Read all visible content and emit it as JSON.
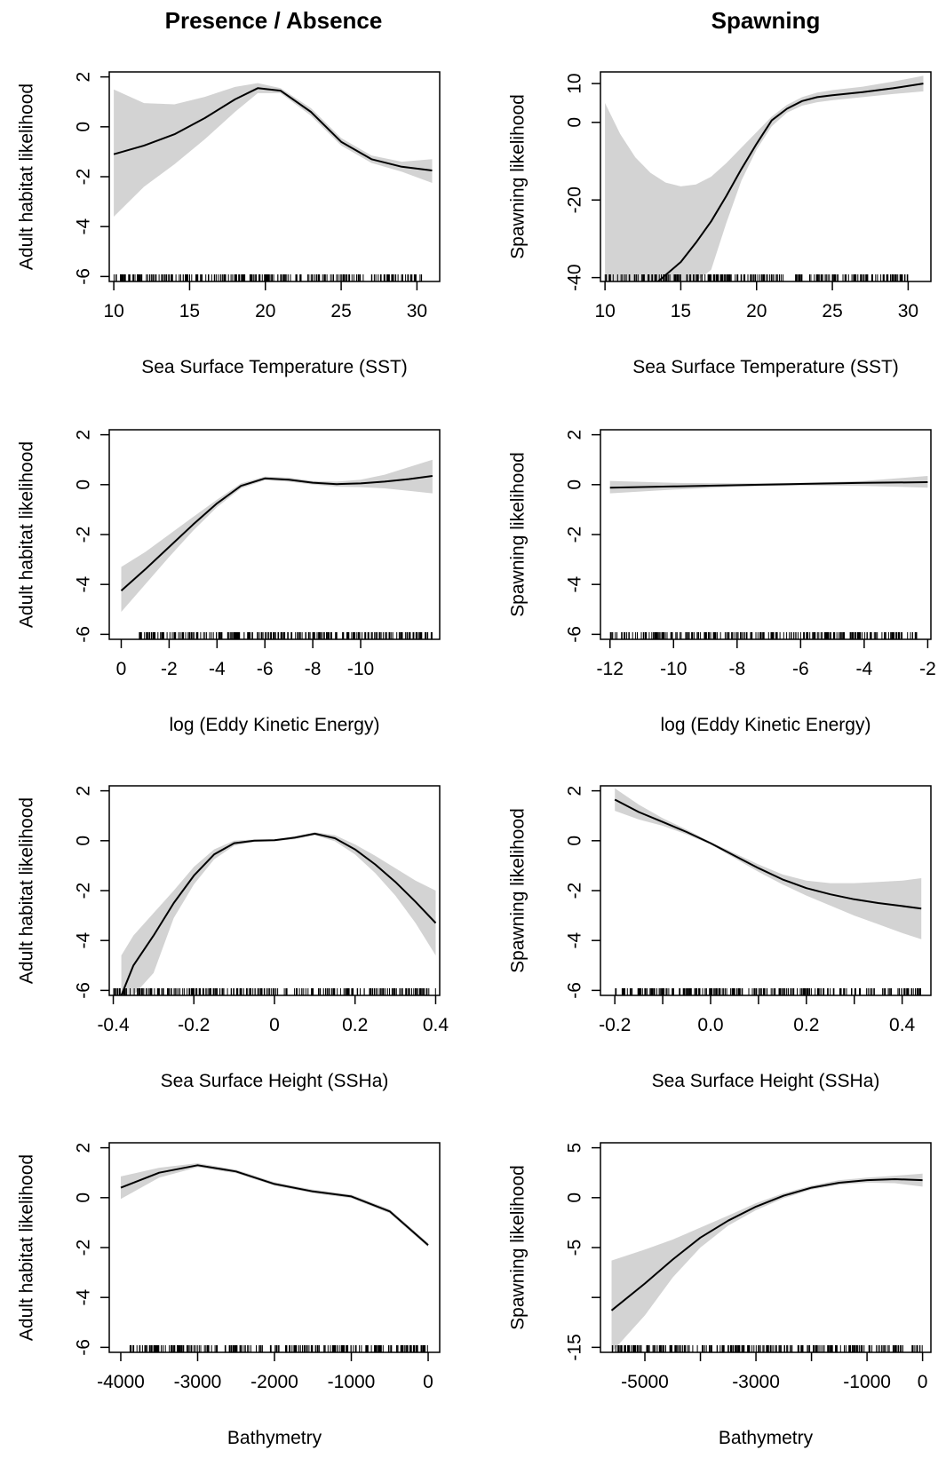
{
  "columns": [
    "Presence / Absence",
    "Spawning"
  ],
  "chart_data": [
    {
      "type": "line",
      "column": 0,
      "row": 0,
      "xlabel": "Sea Surface Temperature (SST)",
      "ylabel": "Adult habitat likelihood",
      "xlim": [
        9.7,
        31.5
      ],
      "ylim": [
        -6.2,
        2.2
      ],
      "xticks": [
        10,
        15,
        20,
        25,
        30
      ],
      "yticks": [
        -6,
        -4,
        -2,
        0,
        2
      ],
      "x": [
        10,
        12,
        14,
        16,
        18,
        19.5,
        21,
        23,
        25,
        27,
        29,
        31
      ],
      "y": [
        -1.1,
        -0.75,
        -0.3,
        0.35,
        1.1,
        1.55,
        1.45,
        0.6,
        -0.6,
        -1.3,
        -1.6,
        -1.75
      ],
      "upper": [
        1.5,
        0.95,
        0.9,
        1.2,
        1.6,
        1.75,
        1.55,
        0.75,
        -0.45,
        -1.15,
        -1.4,
        -1.3
      ],
      "lower": [
        -3.6,
        -2.4,
        -1.5,
        -0.5,
        0.6,
        1.35,
        1.35,
        0.45,
        -0.75,
        -1.45,
        -1.8,
        -2.25
      ],
      "rug_range": [
        10,
        30.5
      ]
    },
    {
      "type": "line",
      "column": 1,
      "row": 0,
      "xlabel": "Sea Surface Temperature (SST)",
      "ylabel": "Spawning likelihood",
      "xlim": [
        9.7,
        31.5
      ],
      "ylim": [
        -41,
        13
      ],
      "xticks": [
        10,
        15,
        20,
        25,
        30
      ],
      "yticks": [
        -40,
        -20,
        0,
        10
      ],
      "x": [
        13.5,
        15,
        16,
        17,
        18,
        19,
        20,
        21,
        22,
        23,
        24,
        25,
        27,
        29,
        31
      ],
      "y": [
        -41,
        -36,
        -31,
        -25.5,
        -19,
        -12,
        -5.5,
        0.5,
        3.5,
        5.5,
        6.5,
        7,
        7.8,
        8.8,
        10
      ],
      "upper": [
        null,
        null,
        null,
        null,
        null,
        null,
        null,
        null,
        null,
        null,
        null,
        null,
        null,
        null,
        null
      ],
      "band_x": [
        10,
        11,
        12,
        13,
        14,
        15,
        16,
        17,
        18,
        19,
        20,
        21,
        22,
        23,
        24,
        25,
        27,
        29,
        31
      ],
      "band_upper": [
        5,
        -3,
        -9,
        -13,
        -15.5,
        -16.5,
        -16,
        -14,
        -10.5,
        -6.5,
        -2.5,
        1.5,
        4.5,
        6.5,
        7.7,
        8.3,
        9.2,
        10.5,
        12
      ],
      "band_lower": [
        -41,
        -41,
        -41,
        -41,
        -41,
        -41,
        -41,
        -38,
        -26,
        -15,
        -7,
        -1,
        2.5,
        4.3,
        5.2,
        5.7,
        6.5,
        7.3,
        8
      ],
      "rug_range": [
        10,
        30
      ]
    },
    {
      "type": "line",
      "column": 0,
      "row": 1,
      "xlabel": "log (Eddy Kinetic Energy)",
      "ylabel": "Adult habitat likelihood",
      "xlim": [
        0.5,
        -13.3
      ],
      "ylim": [
        -6.2,
        2.2
      ],
      "xticks": [
        0,
        -2,
        -4,
        -6,
        -8,
        -10
      ],
      "yticks": [
        -6,
        -4,
        -2,
        0,
        2
      ],
      "x": [
        0,
        -1,
        -2,
        -3,
        -4,
        -5,
        -6,
        -7,
        -8,
        -9,
        -10,
        -11,
        -12,
        -13
      ],
      "y": [
        -4.25,
        -3.4,
        -2.5,
        -1.6,
        -0.75,
        -0.05,
        0.25,
        0.2,
        0.08,
        0.02,
        0.05,
        0.12,
        0.22,
        0.35
      ],
      "upper": [
        -3.3,
        -2.7,
        -2.0,
        -1.3,
        -0.6,
        0.05,
        0.32,
        0.28,
        0.15,
        0.12,
        0.2,
        0.4,
        0.7,
        1.0
      ],
      "lower": [
        -5.1,
        -4.0,
        -2.9,
        -1.85,
        -0.9,
        -0.15,
        0.18,
        0.12,
        0.0,
        -0.08,
        -0.1,
        -0.15,
        -0.25,
        -0.35
      ],
      "rug_range": [
        -0.7,
        -13
      ]
    },
    {
      "type": "line",
      "column": 1,
      "row": 1,
      "xlabel": "log (Eddy Kinetic Energy)",
      "ylabel": "Spawning likelihood",
      "xlim": [
        -12.3,
        -1.9
      ],
      "ylim": [
        -6.2,
        2.2
      ],
      "xticks": [
        -12,
        -10,
        -8,
        -6,
        -4,
        -2
      ],
      "yticks": [
        -6,
        -4,
        -2,
        0,
        2
      ],
      "x": [
        -12,
        -10,
        -8,
        -6,
        -4,
        -2
      ],
      "y": [
        -0.12,
        -0.07,
        -0.02,
        0.03,
        0.07,
        0.1
      ],
      "upper": [
        0.15,
        0.07,
        0.05,
        0.07,
        0.15,
        0.35
      ],
      "lower": [
        -0.35,
        -0.2,
        -0.08,
        -0.03,
        -0.05,
        -0.12
      ],
      "rug_range": [
        -12,
        -2.3
      ]
    },
    {
      "type": "line",
      "column": 0,
      "row": 2,
      "xlabel": "Sea Surface Height (SSHa)",
      "ylabel": "Adult habitat likelihood",
      "xlim": [
        -0.41,
        0.41
      ],
      "ylim": [
        -6.2,
        2.2
      ],
      "xticks": [
        -0.4,
        -0.2,
        0.0,
        0.2,
        0.4
      ],
      "yticks": [
        -6,
        -4,
        -2,
        0,
        2
      ],
      "x": [
        -0.38,
        -0.35,
        -0.3,
        -0.25,
        -0.2,
        -0.15,
        -0.1,
        -0.05,
        0.0,
        0.05,
        0.1,
        0.15,
        0.2,
        0.25,
        0.3,
        0.35,
        0.4
      ],
      "y": [
        -6.2,
        -5.0,
        -3.8,
        -2.5,
        -1.4,
        -0.55,
        -0.1,
        0.0,
        0.02,
        0.12,
        0.28,
        0.1,
        -0.35,
        -0.95,
        -1.65,
        -2.45,
        -3.3
      ],
      "upper": [
        -4.6,
        -3.8,
        -2.9,
        -2.0,
        -1.05,
        -0.35,
        0.0,
        0.05,
        0.05,
        0.18,
        0.34,
        0.22,
        -0.15,
        -0.6,
        -1.1,
        -1.6,
        -2.0
      ],
      "lower": [
        -6.2,
        -6.2,
        -5.3,
        -3.1,
        -1.75,
        -0.75,
        -0.2,
        -0.05,
        -0.02,
        0.06,
        0.22,
        -0.02,
        -0.55,
        -1.3,
        -2.2,
        -3.3,
        -4.6
      ],
      "rug_range": [
        -0.4,
        0.4
      ]
    },
    {
      "type": "line",
      "column": 1,
      "row": 2,
      "xlabel": "Sea Surface Height (SSHa)",
      "ylabel": "Spawning likelihood",
      "xlim": [
        -0.23,
        0.46
      ],
      "ylim": [
        -6.2,
        2.2
      ],
      "xticks": [
        -0.2,
        -0.1,
        0.0,
        0.1,
        0.2,
        0.3,
        0.4
      ],
      "xticklabels": [
        "-0.2",
        "",
        "0.0",
        "",
        "0.2",
        "",
        "0.4"
      ],
      "yticks": [
        -6,
        -4,
        -2,
        0,
        2
      ],
      "x": [
        -0.2,
        -0.15,
        -0.1,
        -0.05,
        0.0,
        0.05,
        0.1,
        0.15,
        0.2,
        0.25,
        0.3,
        0.35,
        0.4,
        0.44
      ],
      "y": [
        1.65,
        1.15,
        0.75,
        0.35,
        -0.1,
        -0.6,
        -1.1,
        -1.55,
        -1.9,
        -2.15,
        -2.35,
        -2.5,
        -2.62,
        -2.72
      ],
      "upper": [
        2.1,
        1.45,
        0.9,
        0.45,
        -0.05,
        -0.5,
        -0.95,
        -1.35,
        -1.6,
        -1.7,
        -1.7,
        -1.65,
        -1.6,
        -1.5
      ],
      "lower": [
        1.2,
        0.85,
        0.6,
        0.25,
        -0.15,
        -0.7,
        -1.25,
        -1.75,
        -2.2,
        -2.6,
        -3.0,
        -3.35,
        -3.7,
        -3.95
      ],
      "rug_range": [
        -0.2,
        0.44
      ]
    },
    {
      "type": "line",
      "column": 0,
      "row": 3,
      "xlabel": "Bathymetry",
      "ylabel": "Adult habitat likelihood",
      "xlim": [
        -4150,
        150
      ],
      "ylim": [
        -6.2,
        2.2
      ],
      "xticks": [
        -4000,
        -3000,
        -2000,
        -1000,
        0
      ],
      "yticks": [
        -6,
        -4,
        -2,
        0,
        2
      ],
      "x": [
        -4000,
        -3500,
        -3000,
        -2500,
        -2000,
        -1500,
        -1000,
        -500,
        0
      ],
      "y": [
        0.4,
        1.0,
        1.3,
        1.05,
        0.55,
        0.25,
        0.05,
        -0.55,
        -1.9
      ],
      "upper": [
        0.85,
        1.2,
        1.38,
        1.12,
        0.62,
        0.32,
        0.12,
        -0.47,
        -1.82
      ],
      "lower": [
        -0.05,
        0.8,
        1.22,
        0.98,
        0.48,
        0.18,
        -0.02,
        -0.63,
        -1.98
      ],
      "rug_range": [
        -3900,
        0
      ]
    },
    {
      "type": "line",
      "column": 1,
      "row": 3,
      "xlabel": "Bathymetry",
      "ylabel": "Spawning likelihood",
      "xlim": [
        -5800,
        150
      ],
      "ylim": [
        -15.5,
        5.5
      ],
      "xticks": [
        -5000,
        -4000,
        -3000,
        -2000,
        -1000,
        0
      ],
      "xticklabels": [
        "-5000",
        "",
        "-3000",
        "",
        "-1000",
        "0"
      ],
      "yticks": [
        -15,
        -10,
        -5,
        0,
        5
      ],
      "yticklabels": [
        "-15",
        "",
        "-5",
        "0",
        "5"
      ],
      "x": [
        -5600,
        -5000,
        -4500,
        -4000,
        -3500,
        -3000,
        -2500,
        -2000,
        -1500,
        -1000,
        -500,
        0
      ],
      "y": [
        -11.3,
        -8.6,
        -6.2,
        -4.0,
        -2.3,
        -0.9,
        0.2,
        1.0,
        1.5,
        1.75,
        1.85,
        1.75
      ],
      "upper": [
        -6.3,
        -5.2,
        -4.2,
        -3.0,
        -1.8,
        -0.55,
        0.45,
        1.2,
        1.75,
        2.0,
        2.2,
        2.4
      ],
      "lower": [
        -15.5,
        -11.8,
        -8.0,
        -5.0,
        -2.8,
        -1.25,
        -0.05,
        0.8,
        1.3,
        1.5,
        1.45,
        1.1
      ],
      "rug_range": [
        -5600,
        0
      ]
    }
  ],
  "colors": {
    "band": "#d3d3d3",
    "line": "#000000"
  }
}
